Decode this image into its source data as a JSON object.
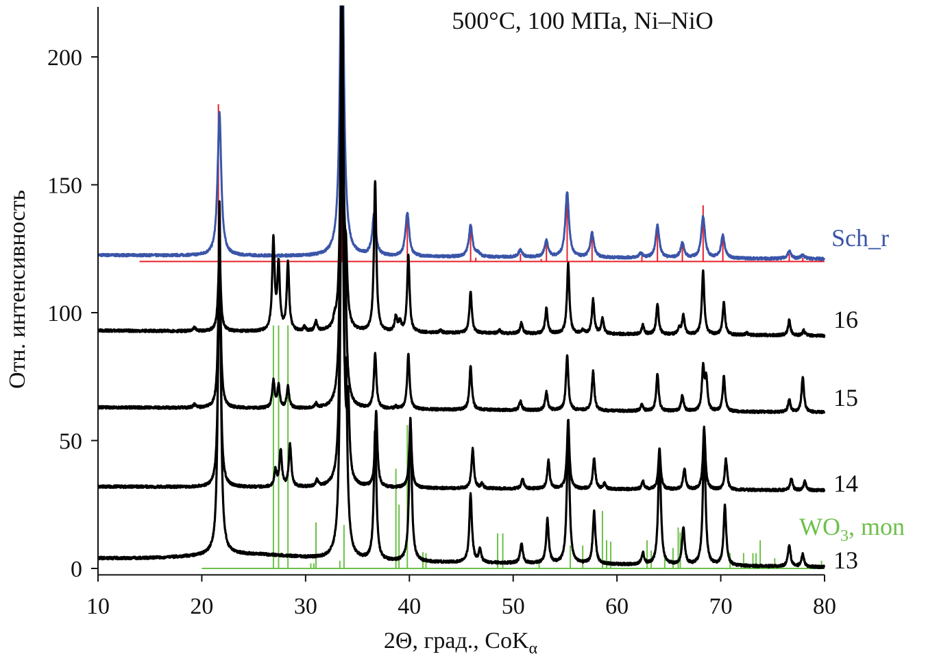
{
  "chart_data": {
    "type": "line",
    "title": "500°C, 100 МПа, Ni–NiO",
    "xlabel": "2Θ, град., CoK",
    "xlabel_subscript": "α",
    "ylabel": "Отн. интенсивность",
    "xlim": [
      10,
      80
    ],
    "ylim": [
      -2.5,
      220
    ],
    "xticks": [
      10,
      20,
      30,
      40,
      50,
      60,
      70,
      80
    ],
    "yticks": [
      0,
      50,
      100,
      150,
      200
    ],
    "grid": false,
    "colors": {
      "sample": "#000000",
      "sch_r": "#3a55a8",
      "ref_red": "#e8202a",
      "wo3": "#6cc04a"
    },
    "series": [
      {
        "name": "Sch_r",
        "color": "#3a55a8",
        "baseline": [
          122.5,
          121
        ],
        "fwhm": 0.42,
        "peaks": [
          [
            21.7,
            178
          ],
          [
            33.5,
            260
          ],
          [
            36.6,
            138
          ],
          [
            39.8,
            139
          ],
          [
            45.9,
            134
          ],
          [
            46.6,
            123
          ],
          [
            50.7,
            124.5
          ],
          [
            53.2,
            128
          ],
          [
            55.2,
            147
          ],
          [
            57.6,
            131
          ],
          [
            62.3,
            123
          ],
          [
            63.9,
            134
          ],
          [
            66.3,
            127
          ],
          [
            68.3,
            137.5
          ],
          [
            70.2,
            130
          ],
          [
            76.6,
            124
          ],
          [
            77.9,
            122.5
          ]
        ]
      },
      {
        "name": "16",
        "color": "#000000",
        "baseline": [
          93,
          91
        ],
        "fwhm": 0.28,
        "peaks": [
          [
            19.3,
            94
          ],
          [
            21.7,
            125
          ],
          [
            26.9,
            128
          ],
          [
            27.4,
            118
          ],
          [
            28.3,
            119
          ],
          [
            29.9,
            94
          ],
          [
            31.0,
            96
          ],
          [
            32.8,
            95
          ],
          [
            33.5,
            240
          ],
          [
            33.9,
            114
          ],
          [
            36.7,
            151
          ],
          [
            38.7,
            98
          ],
          [
            39.1,
            96
          ],
          [
            39.9,
            122
          ],
          [
            43.0,
            93
          ],
          [
            45.9,
            108
          ],
          [
            48.7,
            93
          ],
          [
            50.8,
            96
          ],
          [
            53.2,
            101.6
          ],
          [
            55.3,
            119
          ],
          [
            56.7,
            93
          ],
          [
            57.7,
            105
          ],
          [
            58.6,
            97.6
          ],
          [
            62.5,
            95
          ],
          [
            63.9,
            103.5
          ],
          [
            66.0,
            94
          ],
          [
            66.4,
            99
          ],
          [
            68.3,
            116
          ],
          [
            70.3,
            104
          ],
          [
            72.5,
            92
          ],
          [
            76.6,
            97
          ],
          [
            78.0,
            93
          ]
        ]
      },
      {
        "name": "15",
        "color": "#000000",
        "baseline": [
          63,
          61
        ],
        "fwhm": 0.28,
        "peaks": [
          [
            19.3,
            64
          ],
          [
            21.7,
            125
          ],
          [
            26.9,
            73
          ],
          [
            27.4,
            71
          ],
          [
            28.3,
            70.8
          ],
          [
            31.0,
            64
          ],
          [
            33.5,
            240
          ],
          [
            33.8,
            99
          ],
          [
            36.7,
            84
          ],
          [
            38.7,
            63
          ],
          [
            39.9,
            83.6
          ],
          [
            44.0,
            62
          ],
          [
            45.9,
            79
          ],
          [
            50.7,
            65.4
          ],
          [
            53.2,
            69
          ],
          [
            55.2,
            83
          ],
          [
            57.7,
            77
          ],
          [
            62.4,
            64
          ],
          [
            63.9,
            76
          ],
          [
            66.3,
            67.6
          ],
          [
            68.3,
            78
          ],
          [
            68.6,
            73
          ],
          [
            70.3,
            75
          ],
          [
            76.6,
            66
          ],
          [
            77.9,
            74.8
          ]
        ]
      },
      {
        "name": "14",
        "color": "#000000",
        "baseline": [
          32,
          30.5
        ],
        "fwhm": 0.28,
        "peaks": [
          [
            21.7,
            125
          ],
          [
            27.1,
            38
          ],
          [
            27.6,
            46
          ],
          [
            28.5,
            48
          ],
          [
            31.1,
            34
          ],
          [
            33.5,
            240
          ],
          [
            34.1,
            60
          ],
          [
            36.8,
            61
          ],
          [
            40.1,
            57
          ],
          [
            46.1,
            46.6
          ],
          [
            47.0,
            33
          ],
          [
            50.9,
            35
          ],
          [
            53.4,
            42
          ],
          [
            55.3,
            58
          ],
          [
            57.8,
            43
          ],
          [
            58.8,
            33
          ],
          [
            62.5,
            34
          ],
          [
            64.1,
            46.6
          ],
          [
            66.5,
            39
          ],
          [
            68.4,
            55
          ],
          [
            70.5,
            42.6
          ],
          [
            76.8,
            35
          ],
          [
            78.1,
            34
          ]
        ]
      },
      {
        "name": "13",
        "color": "#000000",
        "baseline": [
          4,
          0.5
        ],
        "fwhm": 0.3,
        "hump": {
          "center": 24.5,
          "width": 7,
          "height": 2.2
        },
        "peaks": [
          [
            21.7,
            142
          ],
          [
            33.5,
            199.5
          ],
          [
            33.9,
            56
          ],
          [
            36.7,
            53
          ],
          [
            40.1,
            59
          ],
          [
            45.9,
            28.7
          ],
          [
            46.8,
            7
          ],
          [
            50.8,
            9.6
          ],
          [
            53.3,
            19
          ],
          [
            55.3,
            55
          ],
          [
            57.8,
            22
          ],
          [
            62.5,
            6
          ],
          [
            64.1,
            47
          ],
          [
            66.4,
            16
          ],
          [
            68.4,
            51
          ],
          [
            70.4,
            24.4
          ],
          [
            76.6,
            9
          ],
          [
            77.9,
            5.6
          ]
        ]
      }
    ],
    "reference_sticks": [
      {
        "name": "Sch_r reference",
        "color": "#e8202a",
        "baseline": 120,
        "range": [
          14,
          80
        ],
        "sticks": [
          [
            21.6,
            181.5
          ],
          [
            33.5,
            225
          ],
          [
            36.6,
            133
          ],
          [
            39.8,
            139
          ],
          [
            45.9,
            134.5
          ],
          [
            46.4,
            121.5
          ],
          [
            50.7,
            123
          ],
          [
            52.7,
            121
          ],
          [
            53.2,
            128
          ],
          [
            55.2,
            147
          ],
          [
            57.6,
            131.5
          ],
          [
            62.4,
            122
          ],
          [
            63.9,
            134
          ],
          [
            66.3,
            126.5
          ],
          [
            68.3,
            142
          ],
          [
            70.2,
            130.5
          ],
          [
            76.6,
            123
          ],
          [
            77.9,
            121.5
          ]
        ]
      },
      {
        "name": "WO3, mon",
        "color": "#6cc04a",
        "baseline": 0,
        "range": [
          20,
          80
        ],
        "sticks": [
          [
            26.9,
            95
          ],
          [
            27.4,
            95
          ],
          [
            28.3,
            95
          ],
          [
            30.5,
            2
          ],
          [
            30.8,
            2
          ],
          [
            31.0,
            18
          ],
          [
            33.3,
            3
          ],
          [
            33.7,
            17
          ],
          [
            38.7,
            39
          ],
          [
            39.0,
            25
          ],
          [
            39.8,
            56
          ],
          [
            41.3,
            6.4
          ],
          [
            41.6,
            6
          ],
          [
            48.5,
            13.7
          ],
          [
            49.0,
            13.7
          ],
          [
            52.5,
            3
          ],
          [
            55.5,
            9
          ],
          [
            56.7,
            9
          ],
          [
            58.6,
            22.5
          ],
          [
            59.0,
            11
          ],
          [
            59.4,
            10.5
          ],
          [
            62.9,
            11
          ],
          [
            63.3,
            7
          ],
          [
            64.6,
            4
          ],
          [
            65.4,
            8
          ],
          [
            65.9,
            16
          ],
          [
            66.1,
            14
          ],
          [
            70.9,
            6
          ],
          [
            72.2,
            6
          ],
          [
            73.1,
            6
          ],
          [
            73.4,
            6
          ],
          [
            73.8,
            11
          ],
          [
            75.2,
            4
          ],
          [
            79.7,
            3
          ]
        ]
      }
    ],
    "labels": {
      "sch_r": "Sch_r",
      "s16": "16",
      "s15": "15",
      "s14": "14",
      "s13": "13",
      "wo3_main": "WO",
      "wo3_sub": "3",
      "wo3_rest": ", mon"
    }
  }
}
